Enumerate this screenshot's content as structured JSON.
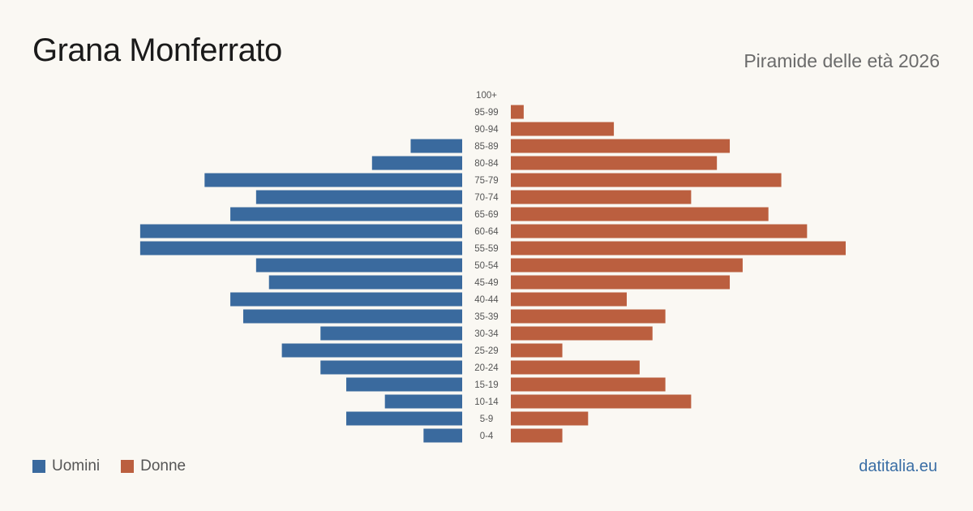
{
  "title": "Grana Monferrato",
  "subtitle": "Piramide delle età 2026",
  "source": "datitalia.eu",
  "colors": {
    "men": "#3a6a9e",
    "women": "#bb5f3f",
    "tick": "#555555"
  },
  "chart_data": {
    "type": "bar",
    "orientation": "horizontal-pyramid",
    "categories": [
      "100+",
      "95-99",
      "90-94",
      "85-89",
      "80-84",
      "75-79",
      "70-74",
      "65-69",
      "60-64",
      "55-59",
      "50-54",
      "45-49",
      "40-44",
      "35-39",
      "30-34",
      "25-29",
      "20-24",
      "15-19",
      "10-14",
      "5-9",
      "0-4"
    ],
    "series": [
      {
        "name": "Uomini",
        "values": [
          0,
          0,
          0,
          4,
          7,
          20,
          16,
          18,
          25,
          25,
          16,
          15,
          18,
          17,
          11,
          14,
          11,
          9,
          6,
          9,
          3
        ]
      },
      {
        "name": "Donne",
        "values": [
          0,
          1,
          8,
          17,
          16,
          21,
          14,
          20,
          23,
          26,
          18,
          17,
          9,
          12,
          11,
          4,
          10,
          12,
          14,
          6,
          4
        ]
      }
    ],
    "grid": false,
    "legend_position": "bottom-left"
  }
}
